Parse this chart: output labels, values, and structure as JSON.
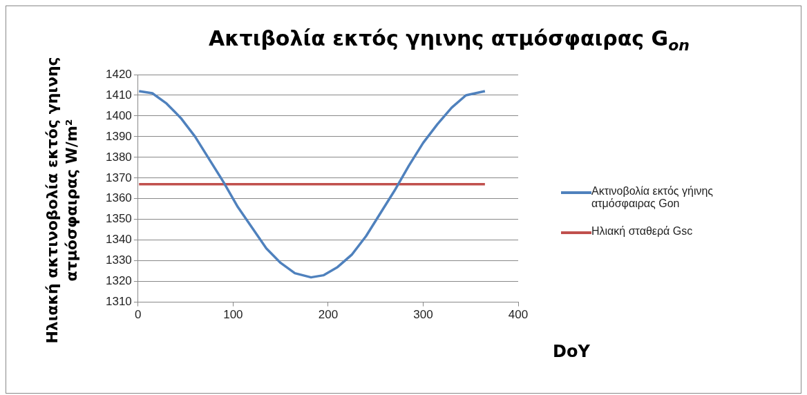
{
  "chart_data": {
    "type": "line",
    "title": "Ακτιβολία εκτός γηινης ατμόσφαιρας G$_{on}$",
    "xlabel": "DoY",
    "ylabel": "Ηλιακή ακτινοβολία εκτός γηινης ατμόσφαιρας W/m²",
    "series": [
      {
        "name": "Ακτινοβολία εκτός γήινης ατμόσφαιρας Gon",
        "color": "#4f81bd",
        "x": [
          1,
          15,
          30,
          45,
          60,
          75,
          90,
          105,
          120,
          135,
          150,
          165,
          182,
          195,
          210,
          225,
          240,
          255,
          270,
          285,
          300,
          315,
          330,
          345,
          365
        ],
        "values": [
          1412,
          1411,
          1406,
          1399,
          1390,
          1379,
          1368,
          1356,
          1346,
          1336,
          1329,
          1324,
          1322,
          1323,
          1327,
          1333,
          1342,
          1353,
          1364,
          1376,
          1387,
          1396,
          1404,
          1410,
          1412
        ]
      },
      {
        "name": "Ηλιακή σταθερά Gsc",
        "color": "#c0504d",
        "x": [
          1,
          365
        ],
        "values": [
          1367,
          1367
        ]
      }
    ],
    "xlim": [
      0,
      400
    ],
    "xticks": [
      0,
      100,
      200,
      300,
      400
    ],
    "ylim": [
      1310,
      1420
    ],
    "yticks": [
      1310,
      1320,
      1330,
      1340,
      1350,
      1360,
      1370,
      1380,
      1390,
      1400,
      1410,
      1420
    ],
    "grid": "y",
    "legend": "right",
    "marker": "none",
    "line_style": "solid"
  }
}
